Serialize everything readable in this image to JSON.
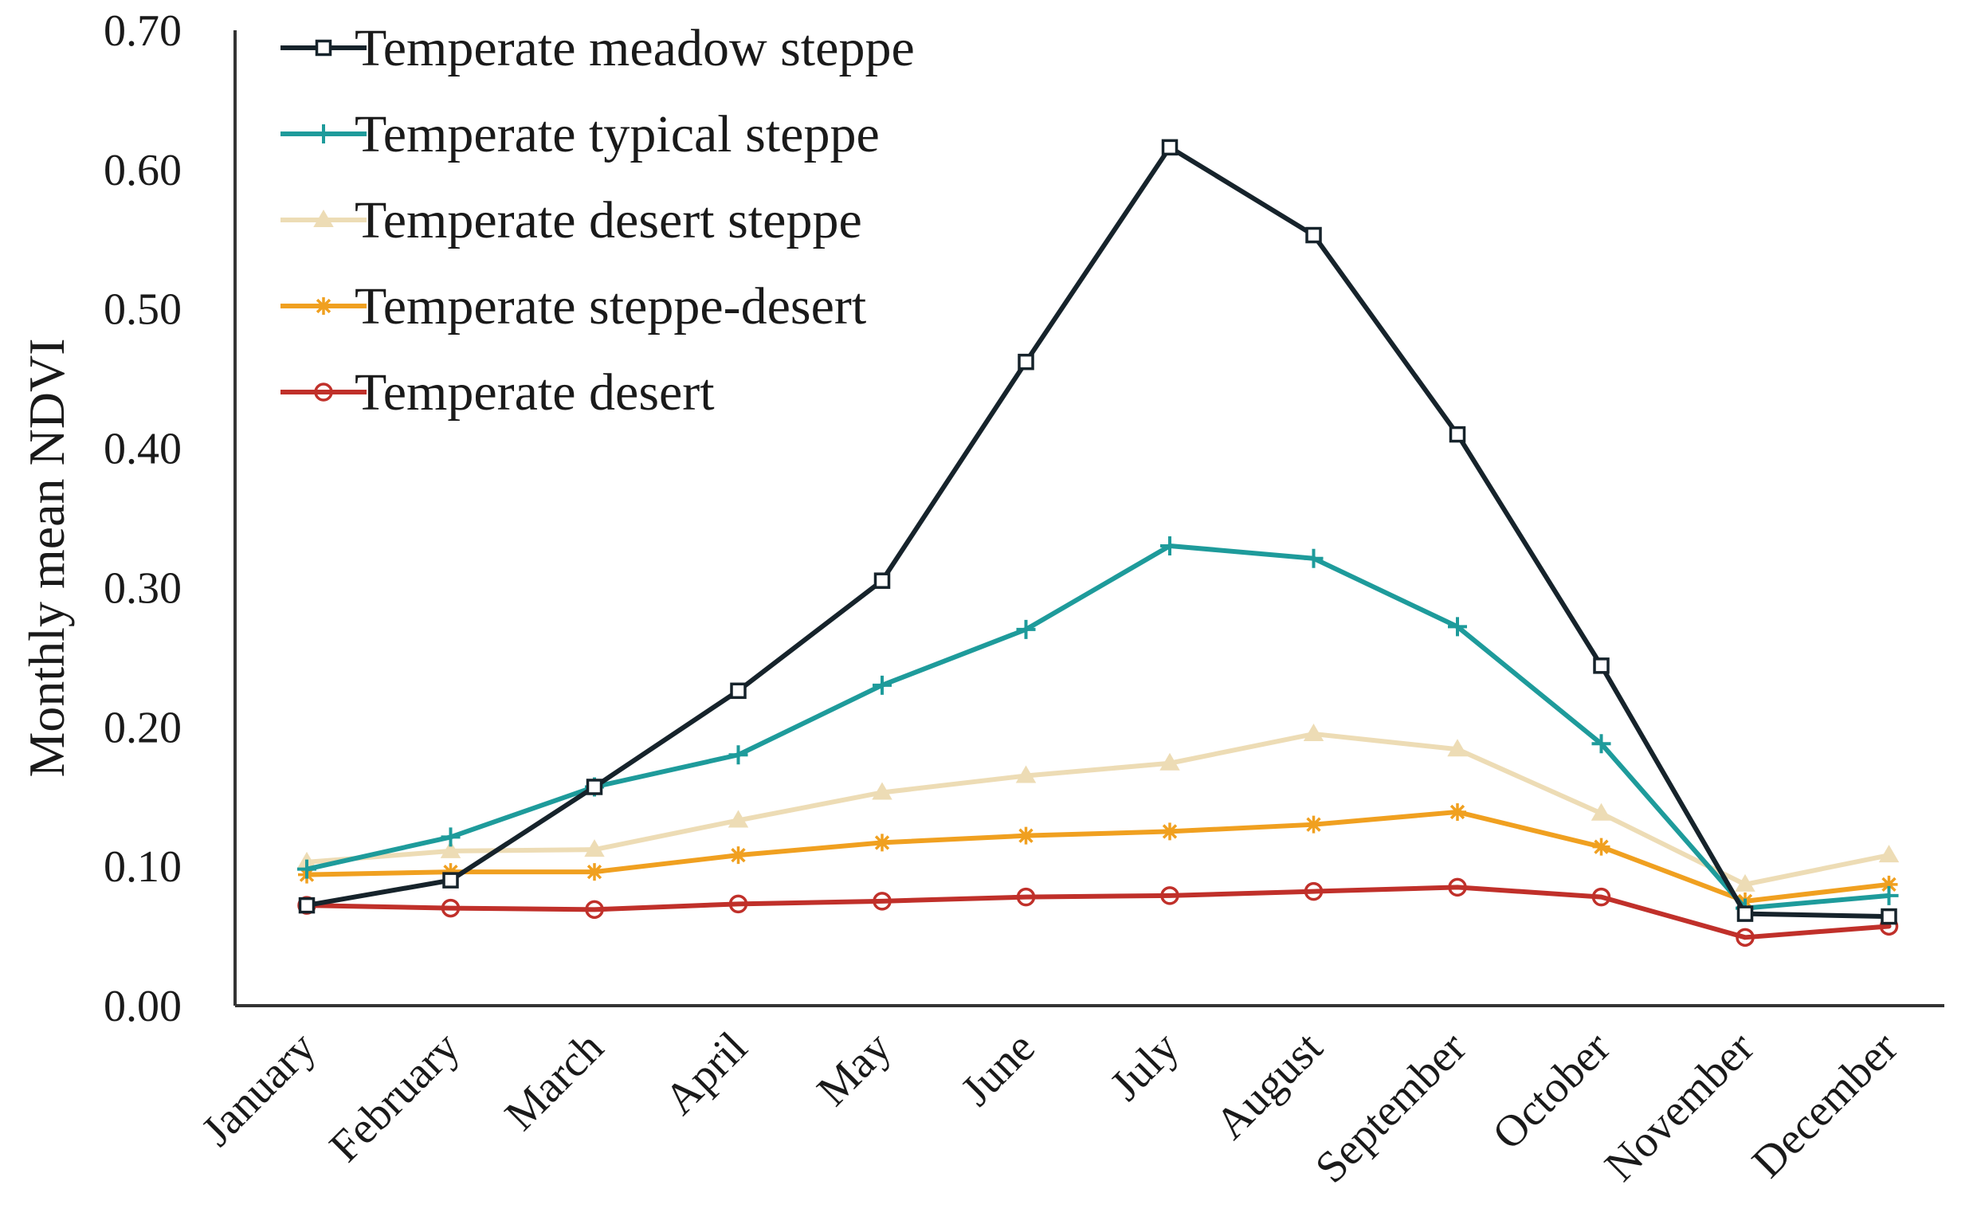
{
  "chart_data": {
    "type": "line",
    "title": "",
    "xlabel": "",
    "ylabel": "Monthly mean NDVI",
    "ylim": [
      0,
      0.7
    ],
    "yticks": [
      "0.00",
      "0.10",
      "0.20",
      "0.30",
      "0.40",
      "0.50",
      "0.60",
      "0.70"
    ],
    "grid": false,
    "legend_position": "top-left",
    "categories": [
      "January",
      "February",
      "March",
      "April",
      "May",
      "June",
      "July",
      "August",
      "September",
      "October",
      "November",
      "December"
    ],
    "series": [
      {
        "name": "Temperate meadow steppe",
        "color": "#16232b",
        "marker": "square",
        "values": [
          0.072,
          0.09,
          0.157,
          0.226,
          0.305,
          0.462,
          0.616,
          0.553,
          0.41,
          0.244,
          0.066,
          0.064
        ]
      },
      {
        "name": "Temperate typical steppe",
        "color": "#1e9b9b",
        "marker": "plus",
        "values": [
          0.098,
          0.121,
          0.157,
          0.18,
          0.23,
          0.27,
          0.33,
          0.321,
          0.272,
          0.188,
          0.07,
          0.079
        ]
      },
      {
        "name": "Temperate desert steppe",
        "color": "#eddcb5",
        "marker": "triangle",
        "values": [
          0.103,
          0.111,
          0.112,
          0.133,
          0.153,
          0.165,
          0.174,
          0.195,
          0.184,
          0.138,
          0.087,
          0.108
        ]
      },
      {
        "name": "Temperate steppe-desert",
        "color": "#f0a020",
        "marker": "star",
        "values": [
          0.094,
          0.096,
          0.096,
          0.108,
          0.117,
          0.122,
          0.125,
          0.13,
          0.139,
          0.114,
          0.075,
          0.087
        ]
      },
      {
        "name": "Temperate desert",
        "color": "#c0302a",
        "marker": "circle",
        "values": [
          0.072,
          0.07,
          0.069,
          0.073,
          0.075,
          0.078,
          0.079,
          0.082,
          0.085,
          0.078,
          0.049,
          0.057
        ]
      }
    ]
  }
}
